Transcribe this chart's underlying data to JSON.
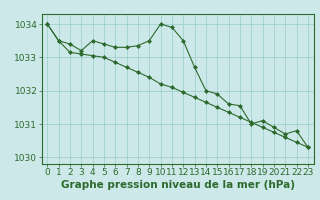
{
  "series1": [
    1034.0,
    1033.5,
    1033.4,
    1033.2,
    1033.5,
    1033.4,
    1033.3,
    1033.3,
    1033.35,
    1033.5,
    1034.0,
    1033.9,
    1033.5,
    1032.7,
    1032.0,
    1031.9,
    1031.6,
    1031.55,
    1031.0,
    1031.1,
    1030.9,
    1030.7,
    1030.8,
    1030.3
  ],
  "series2": [
    1034.0,
    1033.5,
    1033.15,
    1033.1,
    1033.05,
    1033.0,
    1032.85,
    1032.7,
    1032.55,
    1032.4,
    1032.2,
    1032.1,
    1031.95,
    1031.8,
    1031.65,
    1031.5,
    1031.35,
    1031.2,
    1031.05,
    1030.9,
    1030.75,
    1030.6,
    1030.45,
    1030.3
  ],
  "x": [
    0,
    1,
    2,
    3,
    4,
    5,
    6,
    7,
    8,
    9,
    10,
    11,
    12,
    13,
    14,
    15,
    16,
    17,
    18,
    19,
    20,
    21,
    22,
    23
  ],
  "xlabel": "Graphe pression niveau de la mer (hPa)",
  "ylim": [
    1029.8,
    1034.3
  ],
  "yticks": [
    1030,
    1031,
    1032,
    1033,
    1034
  ],
  "xticks": [
    0,
    1,
    2,
    3,
    4,
    5,
    6,
    7,
    8,
    9,
    10,
    11,
    12,
    13,
    14,
    15,
    16,
    17,
    18,
    19,
    20,
    21,
    22,
    23
  ],
  "line_color": "#2d6a2d",
  "marker": "D",
  "markersize": 2,
  "bg_color": "#cce8e8",
  "grid_color": "#99cccc",
  "xlabel_fontsize": 7.5,
  "tick_fontsize": 6.5
}
